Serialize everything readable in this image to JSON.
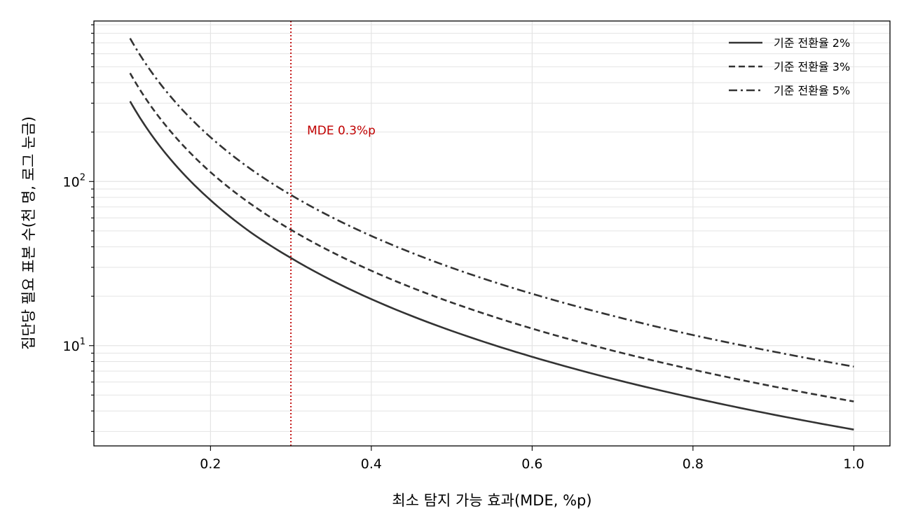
{
  "chart_data": {
    "type": "line",
    "xlabel": "최소 탐지 가능 효과(MDE, %p)",
    "ylabel": "집단당 필요 표본 수(천 명, 로그 눈금)",
    "xlim": [
      0.055,
      1.045
    ],
    "ylim": [
      2.45,
      950
    ],
    "yscale": "log",
    "grid": true,
    "legend_position": "top-right",
    "x_ticks": [
      {
        "value": 0.2,
        "label": "0.2"
      },
      {
        "value": 0.4,
        "label": "0.4"
      },
      {
        "value": 0.6,
        "label": "0.6"
      },
      {
        "value": 0.8,
        "label": "0.8"
      },
      {
        "value": 1.0,
        "label": "1.0"
      }
    ],
    "y_ticks": [
      {
        "value": 10,
        "base": "10",
        "exp": "1"
      },
      {
        "value": 100,
        "base": "10",
        "exp": "2"
      }
    ],
    "series": [
      {
        "name": "기준 전환율 2%",
        "style": "solid",
        "x": [
          0.1,
          0.12,
          0.15,
          0.2,
          0.25,
          0.3,
          0.4,
          0.5,
          0.6,
          0.7,
          0.8,
          0.9,
          1.0
        ],
        "values": [
          308,
          214,
          137,
          77,
          49,
          34.2,
          19.2,
          12.3,
          8.55,
          6.28,
          4.81,
          3.8,
          3.08
        ]
      },
      {
        "name": "기준 전환율 3%",
        "style": "dashed",
        "x": [
          0.1,
          0.12,
          0.15,
          0.2,
          0.25,
          0.3,
          0.4,
          0.5,
          0.6,
          0.7,
          0.8,
          0.9,
          1.0
        ],
        "values": [
          457,
          317,
          203,
          114,
          73,
          50.8,
          28.6,
          18.3,
          12.7,
          9.33,
          7.14,
          5.64,
          4.57
        ]
      },
      {
        "name": "기준 전환율 5%",
        "style": "dashdot",
        "x": [
          0.1,
          0.12,
          0.15,
          0.2,
          0.25,
          0.3,
          0.4,
          0.5,
          0.6,
          0.7,
          0.8,
          0.9,
          1.0
        ],
        "values": [
          745,
          517,
          331,
          186,
          119,
          82.8,
          46.6,
          29.8,
          20.7,
          15.2,
          11.6,
          9.2,
          7.45
        ]
      }
    ],
    "annotations": [
      {
        "type": "vline",
        "x": 0.3,
        "color": "#c00000",
        "text": "MDE 0.3%p",
        "text_x": 0.32,
        "text_y": 205
      }
    ],
    "colors": {
      "line": "#333333",
      "annotation": "#c00000",
      "grid": "#e4e4e4"
    }
  }
}
